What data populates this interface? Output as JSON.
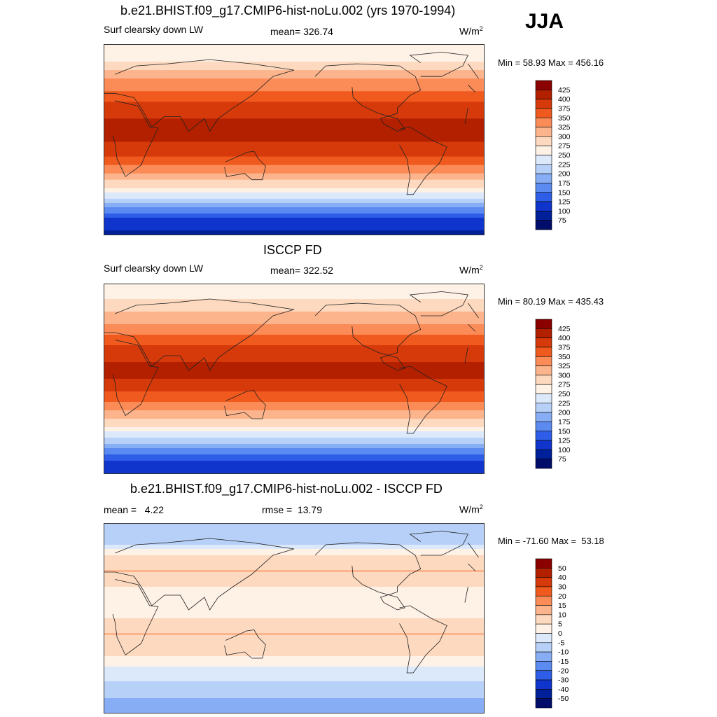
{
  "season": "JJA",
  "panels": [
    {
      "title": "b.e21.BHIST.f09_g17.CMIP6-hist-noLu.002 (yrs 1970-1994)",
      "left_label": "Surf clearsky down LW",
      "center_label": "mean= 326.74",
      "units": "W/m",
      "units_sup": "2",
      "minmax": "Min =  58.93 Max = 456.16",
      "colorbar": {
        "labels": [
          "425",
          "400",
          "375",
          "350",
          "325",
          "300",
          "275",
          "250",
          "225",
          "200",
          "175",
          "150",
          "125",
          "100",
          "75"
        ],
        "colors": [
          "#8b0000",
          "#b22000",
          "#d63a0a",
          "#f05a1e",
          "#fb8c58",
          "#fcb48c",
          "#fdd9bf",
          "#fef1e6",
          "#dce9fb",
          "#b6d0f8",
          "#87aef4",
          "#5b8af0",
          "#2e5ee8",
          "#0f35cc",
          "#002099",
          "#000d6b"
        ]
      }
    },
    {
      "title": "ISCCP FD",
      "left_label": "Surf clearsky down LW",
      "center_label": "mean= 322.52",
      "units": "W/m",
      "units_sup": "2",
      "minmax": "Min =  80.19 Max = 435.43",
      "colorbar": {
        "labels": [
          "425",
          "400",
          "375",
          "350",
          "325",
          "300",
          "275",
          "250",
          "225",
          "200",
          "175",
          "150",
          "125",
          "100",
          "75"
        ],
        "colors": [
          "#8b0000",
          "#b22000",
          "#d63a0a",
          "#f05a1e",
          "#fb8c58",
          "#fcb48c",
          "#fdd9bf",
          "#fef1e6",
          "#dce9fb",
          "#b6d0f8",
          "#87aef4",
          "#5b8af0",
          "#2e5ee8",
          "#0f35cc",
          "#002099",
          "#000d6b"
        ]
      }
    },
    {
      "title": "b.e21.BHIST.f09_g17.CMIP6-hist-noLu.002 - ISCCP FD",
      "left_label": "mean =   4.22",
      "center_label": "rmse =  13.79",
      "units": "W/m",
      "units_sup": "2",
      "minmax": "Min = -71.60 Max =  53.18",
      "colorbar": {
        "labels": [
          "50",
          "40",
          "30",
          "20",
          "15",
          "10",
          "5",
          "0",
          "-5",
          "-10",
          "-15",
          "-20",
          "-30",
          "-40",
          "-50"
        ],
        "colors": [
          "#8b0000",
          "#b22000",
          "#d63a0a",
          "#f05a1e",
          "#fb8c58",
          "#fcb48c",
          "#fdd9bf",
          "#fef1e6",
          "#dce9fb",
          "#b6d0f8",
          "#87aef4",
          "#5b8af0",
          "#2e5ee8",
          "#0f35cc",
          "#002099",
          "#000d6b"
        ]
      }
    }
  ],
  "chart_data": [
    {
      "type": "heatmap",
      "title": "b.e21.BHIST.f09_g17.CMIP6-hist-noLu.002 (yrs 1970-1994)",
      "variable": "Surf clearsky down LW",
      "units": "W/m2",
      "mean": 326.74,
      "min": 58.93,
      "max": 456.16,
      "contour_levels": [
        75,
        100,
        125,
        150,
        175,
        200,
        225,
        250,
        275,
        300,
        325,
        350,
        375,
        400,
        425
      ],
      "zonal_profile": [
        {
          "lat": 90,
          "value": 255
        },
        {
          "lat": 75,
          "value": 270
        },
        {
          "lat": 60,
          "value": 320
        },
        {
          "lat": 45,
          "value": 350
        },
        {
          "lat": 30,
          "value": 390
        },
        {
          "lat": 15,
          "value": 405
        },
        {
          "lat": 0,
          "value": 405
        },
        {
          "lat": -15,
          "value": 375
        },
        {
          "lat": -30,
          "value": 330
        },
        {
          "lat": -45,
          "value": 275
        },
        {
          "lat": -60,
          "value": 200
        },
        {
          "lat": -75,
          "value": 120
        },
        {
          "lat": -90,
          "value": 90
        }
      ]
    },
    {
      "type": "heatmap",
      "title": "ISCCP FD",
      "variable": "Surf clearsky down LW",
      "units": "W/m2",
      "mean": 322.52,
      "min": 80.19,
      "max": 435.43,
      "contour_levels": [
        75,
        100,
        125,
        150,
        175,
        200,
        225,
        250,
        275,
        300,
        325,
        350,
        375,
        400,
        425
      ],
      "zonal_profile": [
        {
          "lat": 90,
          "value": 260
        },
        {
          "lat": 75,
          "value": 275
        },
        {
          "lat": 60,
          "value": 310
        },
        {
          "lat": 45,
          "value": 340
        },
        {
          "lat": 30,
          "value": 380
        },
        {
          "lat": 15,
          "value": 400
        },
        {
          "lat": 0,
          "value": 400
        },
        {
          "lat": -15,
          "value": 370
        },
        {
          "lat": -30,
          "value": 325
        },
        {
          "lat": -45,
          "value": 275
        },
        {
          "lat": -60,
          "value": 205
        },
        {
          "lat": -75,
          "value": 130
        },
        {
          "lat": -90,
          "value": 100
        }
      ]
    },
    {
      "type": "heatmap",
      "title": "b.e21.BHIST.f09_g17.CMIP6-hist-noLu.002 - ISCCP FD",
      "units": "W/m2",
      "mean": 4.22,
      "rmse": 13.79,
      "min": -71.6,
      "max": 53.18,
      "contour_levels": [
        -50,
        -40,
        -30,
        -20,
        -15,
        -10,
        -5,
        0,
        5,
        10,
        15,
        20,
        30,
        40,
        50
      ],
      "zonal_profile": [
        {
          "lat": 90,
          "value": -5
        },
        {
          "lat": 75,
          "value": -10
        },
        {
          "lat": 60,
          "value": 5
        },
        {
          "lat": 45,
          "value": 10
        },
        {
          "lat": 30,
          "value": 5
        },
        {
          "lat": 15,
          "value": 0
        },
        {
          "lat": 0,
          "value": 5
        },
        {
          "lat": -15,
          "value": 10
        },
        {
          "lat": -30,
          "value": 8
        },
        {
          "lat": -45,
          "value": 0
        },
        {
          "lat": -60,
          "value": -5
        },
        {
          "lat": -75,
          "value": -10
        },
        {
          "lat": -90,
          "value": -15
        }
      ]
    }
  ]
}
